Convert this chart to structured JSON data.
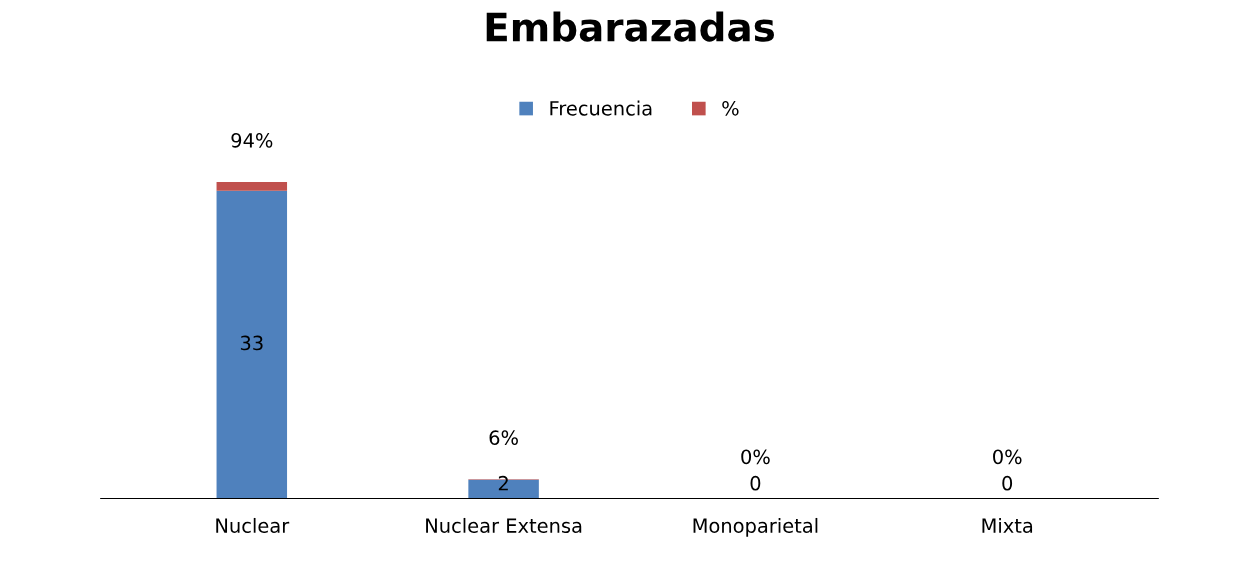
{
  "chart_data": {
    "type": "bar",
    "title": "Embarazadas",
    "categories": [
      "Nuclear",
      "Nuclear Extensa",
      "Monoparietal",
      "Mixta"
    ],
    "stacked": true,
    "series": [
      {
        "name": "Frecuencia",
        "color": "#4f81bd",
        "values": [
          33,
          2,
          0,
          0
        ],
        "value_labels": [
          "33",
          "2",
          "0",
          "0"
        ]
      },
      {
        "name": "%",
        "color": "#c0504d",
        "values": [
          0.94,
          0.06,
          0,
          0
        ],
        "value_labels": [
          "94%",
          "6%",
          "0%",
          "0%"
        ]
      }
    ],
    "legend": "top",
    "grid": false
  }
}
